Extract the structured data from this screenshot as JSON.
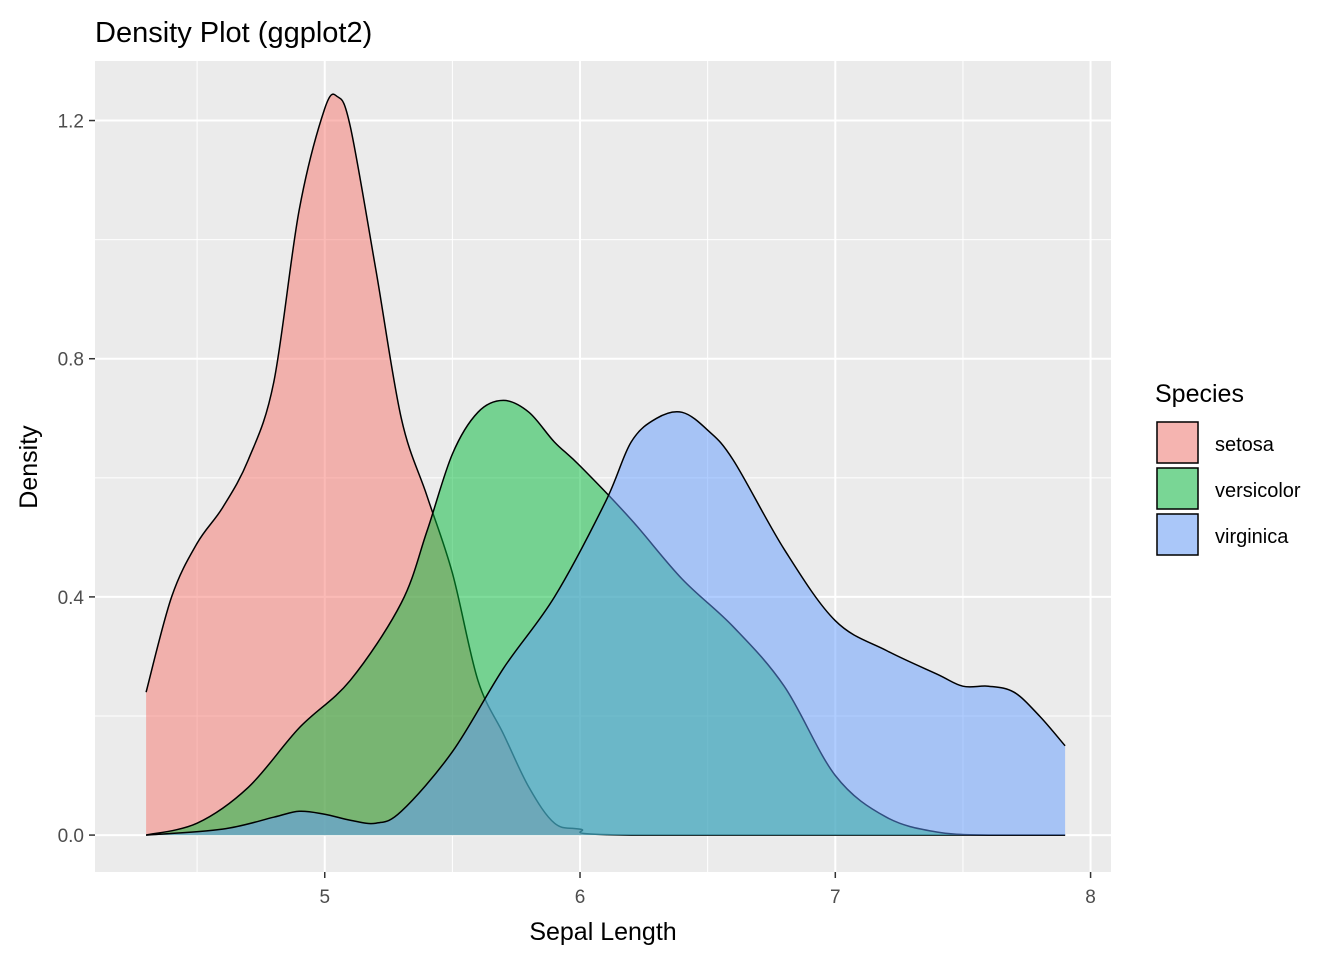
{
  "chart_data": {
    "type": "area",
    "title": "Density Plot (ggplot2)",
    "xlabel": "Sepal Length",
    "ylabel": "Density",
    "xlim": [
      4.1,
      8.08
    ],
    "ylim": [
      -0.062,
      1.3
    ],
    "x_ticks": [
      5,
      6,
      7,
      8
    ],
    "x_tick_labels": [
      "5",
      "6",
      "7",
      "8"
    ],
    "y_ticks": [
      0.0,
      0.4,
      0.8,
      1.2
    ],
    "y_tick_labels": [
      "0.0",
      "0.4",
      "0.8",
      "1.2"
    ],
    "grid": true,
    "legend": {
      "title": "Species",
      "position": "right",
      "items": [
        "setosa",
        "versicolor",
        "virginica"
      ]
    },
    "series": [
      {
        "name": "setosa",
        "color": "#F8766D",
        "x": [
          4.3,
          4.4,
          4.5,
          4.6,
          4.7,
          4.8,
          4.9,
          5.0,
          5.05,
          5.1,
          5.2,
          5.3,
          5.4,
          5.5,
          5.6,
          5.7,
          5.8,
          5.9,
          6.0,
          6.2,
          7.9
        ],
        "y": [
          0.24,
          0.4,
          0.49,
          0.55,
          0.63,
          0.76,
          1.05,
          1.22,
          1.24,
          1.19,
          0.95,
          0.7,
          0.57,
          0.44,
          0.26,
          0.17,
          0.08,
          0.02,
          0.01,
          0.0,
          0.0
        ]
      },
      {
        "name": "versicolor",
        "color": "#00BA38",
        "x": [
          4.3,
          4.5,
          4.7,
          4.9,
          5.1,
          5.3,
          5.4,
          5.5,
          5.6,
          5.7,
          5.8,
          5.9,
          6.0,
          6.2,
          6.4,
          6.6,
          6.8,
          7.0,
          7.2,
          7.4,
          7.6,
          7.9
        ],
        "y": [
          0.0,
          0.02,
          0.08,
          0.18,
          0.26,
          0.39,
          0.51,
          0.64,
          0.71,
          0.73,
          0.71,
          0.66,
          0.62,
          0.53,
          0.43,
          0.35,
          0.25,
          0.1,
          0.03,
          0.005,
          0.0,
          0.0
        ]
      },
      {
        "name": "virginica",
        "color": "#619CFF",
        "x": [
          4.3,
          4.6,
          4.8,
          4.9,
          5.0,
          5.1,
          5.2,
          5.3,
          5.5,
          5.7,
          5.9,
          6.1,
          6.2,
          6.3,
          6.4,
          6.5,
          6.6,
          6.8,
          7.0,
          7.2,
          7.4,
          7.5,
          7.6,
          7.7,
          7.8,
          7.9
        ],
        "y": [
          0.0,
          0.01,
          0.03,
          0.04,
          0.035,
          0.025,
          0.02,
          0.04,
          0.14,
          0.28,
          0.4,
          0.56,
          0.66,
          0.7,
          0.71,
          0.68,
          0.63,
          0.48,
          0.36,
          0.31,
          0.27,
          0.25,
          0.25,
          0.24,
          0.2,
          0.15
        ]
      }
    ]
  }
}
